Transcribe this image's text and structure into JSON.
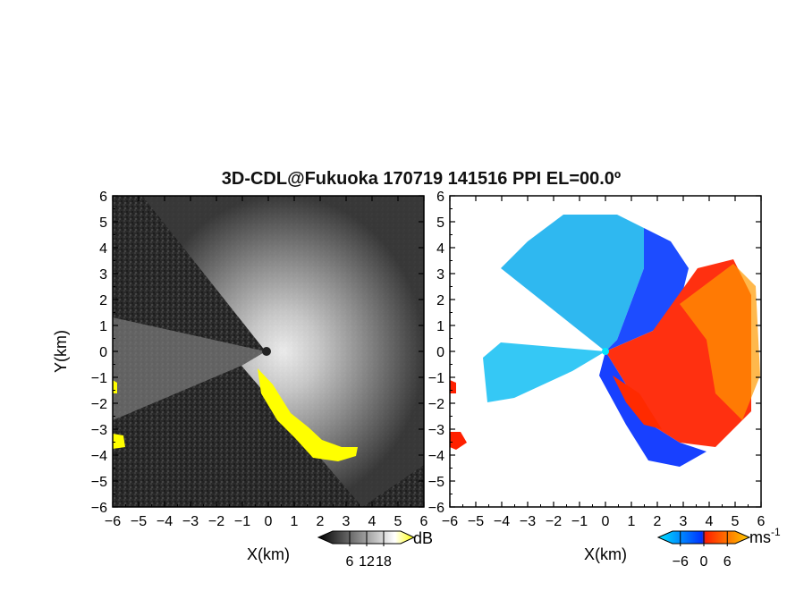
{
  "chart_data": {
    "type": "heatmap",
    "title": "3D-CDL@Fukuoka 170719 141516 PPI EL=00.0º",
    "grid": false,
    "panels": [
      {
        "id": "snr",
        "xlabel": "X(km)",
        "ylabel": "Y(km)",
        "xlim": [
          -6,
          6
        ],
        "ylim": [
          -6,
          6
        ],
        "x_ticks": [
          "-6",
          "-5",
          "-4",
          "-3",
          "-2",
          "-1",
          "0",
          "1",
          "2",
          "3",
          "4",
          "5",
          "6"
        ],
        "y_ticks": [
          "-6",
          "-5",
          "-4",
          "-3",
          "-2",
          "-1",
          "0",
          "1",
          "2",
          "3",
          "4",
          "5",
          "6"
        ],
        "colorbar": {
          "unit": "dB",
          "ticks": [
            "6",
            "12",
            "18"
          ],
          "tick_values": [
            6,
            12,
            18
          ],
          "range": [
            0,
            24
          ],
          "colors": [
            "#000000",
            "#ffffff",
            "#ffff00"
          ]
        }
      },
      {
        "id": "velocity",
        "xlabel": "X(km)",
        "xlim": [
          -6,
          6
        ],
        "ylim": [
          -6,
          6
        ],
        "x_ticks": [
          "-6",
          "-5",
          "-4",
          "-3",
          "-2",
          "-1",
          "0",
          "1",
          "2",
          "3",
          "4",
          "5",
          "6"
        ],
        "y_ticks": [
          "-6",
          "-5",
          "-4",
          "-3",
          "-2",
          "-1",
          "0",
          "1",
          "2",
          "3",
          "4",
          "5",
          "6"
        ],
        "colorbar": {
          "unit": "ms",
          "unit_exponent": "-1",
          "ticks": [
            "-6",
            "0",
            "6"
          ],
          "tick_values": [
            -6,
            0,
            6
          ],
          "range": [
            -8,
            8
          ],
          "colors": [
            "#00e5ff",
            "#0033ff",
            "#ff2000",
            "#ffcc00"
          ]
        }
      }
    ]
  }
}
